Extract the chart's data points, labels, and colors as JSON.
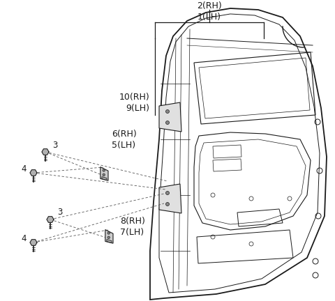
{
  "bg_color": "#ffffff",
  "line_color": "#1a1a1a",
  "label_color": "#1a1a1a",
  "figsize": [
    4.8,
    4.32
  ],
  "dpi": 100,
  "labels": {
    "top": "2(RH)\n1(LH)",
    "mid": "10(RH)\n9(LH)",
    "upper_hinge": "6(RH)\n5(LH)",
    "lower_hinge": "8(RH)\n7(LH)",
    "s3a": "3",
    "s4a": "4",
    "s3b": "3",
    "s4b": "4"
  }
}
